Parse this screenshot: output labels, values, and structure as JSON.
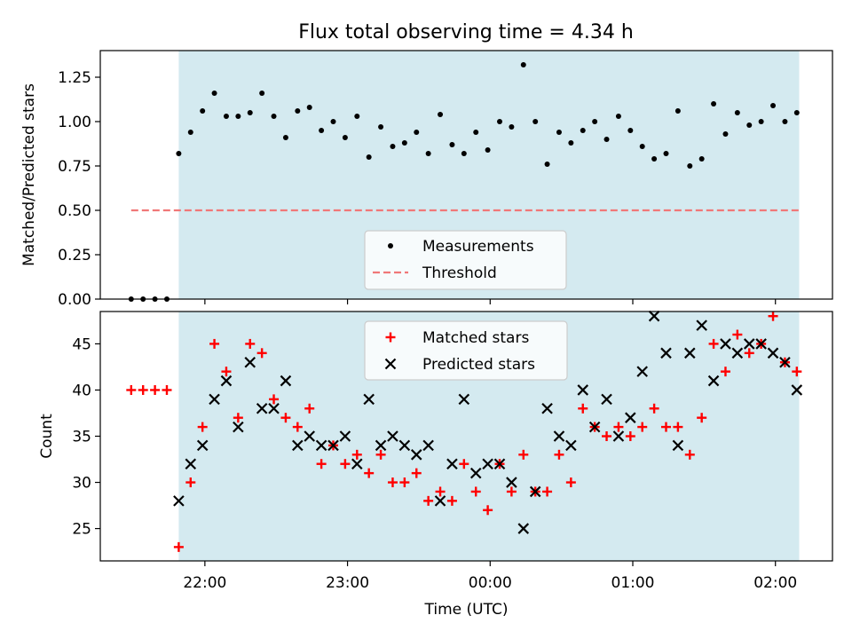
{
  "title": "Flux total observing time = 4.34 h",
  "colors": {
    "shade": "#d4eaf0",
    "threshold": "#f07878",
    "matched": "#ff0000",
    "predicted": "#000000",
    "measurement": "#000000"
  },
  "chart_data": [
    {
      "type": "scatter",
      "panel": "top",
      "ylabel": "Matched/Predicted stars",
      "ylim": [
        0,
        1.4
      ],
      "yticks": [
        "0.00",
        "0.25",
        "0.50",
        "0.75",
        "1.00",
        "1.25"
      ],
      "ytick_values": [
        0,
        0.25,
        0.5,
        0.75,
        1.0,
        1.25
      ],
      "xlim": [
        "21:16",
        "02:24"
      ],
      "shaded_span": [
        "21:49",
        "02:10"
      ],
      "legend": {
        "placement": "lower center",
        "entries": [
          "Measurements",
          "Threshold"
        ]
      },
      "threshold": {
        "name": "Threshold",
        "value": 0.5,
        "x_range": [
          "21:29",
          "02:10"
        ]
      },
      "series": [
        {
          "name": "Measurements",
          "marker": "dot",
          "x": [
            "21:29",
            "21:34",
            "21:39",
            "21:44",
            "21:49",
            "21:54",
            "21:59",
            "22:04",
            "22:09",
            "22:14",
            "22:19",
            "22:24",
            "22:29",
            "22:34",
            "22:39",
            "22:44",
            "22:49",
            "22:54",
            "22:59",
            "23:04",
            "23:09",
            "23:14",
            "23:19",
            "23:24",
            "23:29",
            "23:34",
            "23:39",
            "23:44",
            "23:49",
            "23:54",
            "23:59",
            "00:04",
            "00:09",
            "00:14",
            "00:19",
            "00:24",
            "00:29",
            "00:34",
            "00:39",
            "00:44",
            "00:49",
            "00:54",
            "00:59",
            "01:04",
            "01:09",
            "01:14",
            "01:19",
            "01:24",
            "01:29",
            "01:34",
            "01:39",
            "01:44",
            "01:49",
            "01:54",
            "01:59",
            "02:04",
            "02:09"
          ],
          "y": [
            0,
            0,
            0,
            0,
            0.82,
            0.94,
            1.06,
            1.16,
            1.03,
            1.03,
            1.05,
            1.16,
            1.03,
            0.91,
            1.06,
            1.08,
            0.95,
            1.0,
            0.91,
            1.03,
            0.8,
            0.97,
            0.86,
            0.88,
            0.94,
            0.82,
            1.04,
            0.87,
            0.82,
            0.94,
            0.84,
            1.0,
            0.97,
            1.32,
            1.0,
            0.76,
            0.94,
            0.88,
            0.95,
            1.0,
            0.9,
            1.03,
            0.95,
            0.86,
            0.79,
            0.82,
            1.06,
            0.75,
            0.79,
            1.1,
            0.93,
            1.05,
            0.98,
            1.0,
            1.09,
            1.0,
            1.05
          ]
        }
      ]
    },
    {
      "type": "scatter",
      "panel": "bottom",
      "ylabel": "Count",
      "xlabel": "Time (UTC)",
      "ylim": [
        21.5,
        48.5
      ],
      "yticks": [
        "25",
        "30",
        "35",
        "40",
        "45"
      ],
      "ytick_values": [
        25,
        30,
        35,
        40,
        45
      ],
      "xlim": [
        "21:16",
        "02:24"
      ],
      "xticks": [
        "22:00",
        "23:00",
        "00:00",
        "01:00",
        "02:00"
      ],
      "shaded_span": [
        "21:49",
        "02:10"
      ],
      "legend": {
        "placement": "upper center",
        "entries": [
          "Matched stars",
          "Predicted stars"
        ]
      },
      "series": [
        {
          "name": "Matched stars",
          "marker": "plus",
          "x": [
            "21:29",
            "21:34",
            "21:39",
            "21:44",
            "21:49",
            "21:54",
            "21:59",
            "22:04",
            "22:09",
            "22:14",
            "22:19",
            "22:24",
            "22:29",
            "22:34",
            "22:39",
            "22:44",
            "22:49",
            "22:54",
            "22:59",
            "23:04",
            "23:09",
            "23:14",
            "23:19",
            "23:24",
            "23:29",
            "23:34",
            "23:39",
            "23:44",
            "23:49",
            "23:54",
            "23:59",
            "00:04",
            "00:09",
            "00:14",
            "00:19",
            "00:24",
            "00:29",
            "00:34",
            "00:39",
            "00:44",
            "00:49",
            "00:54",
            "00:59",
            "01:04",
            "01:09",
            "01:14",
            "01:19",
            "01:24",
            "01:29",
            "01:34",
            "01:39",
            "01:44",
            "01:49",
            "01:54",
            "01:59",
            "02:04",
            "02:09"
          ],
          "y": [
            40,
            40,
            40,
            40,
            23,
            30,
            36,
            45,
            42,
            37,
            45,
            44,
            39,
            37,
            36,
            38,
            32,
            34,
            32,
            33,
            31,
            33,
            30,
            30,
            31,
            28,
            29,
            28,
            32,
            29,
            27,
            32,
            29,
            33,
            29,
            29,
            33,
            30,
            38,
            36,
            35,
            36,
            35,
            36,
            38,
            36,
            36,
            33,
            37,
            45,
            42,
            46,
            44,
            45,
            48,
            43,
            42
          ]
        },
        {
          "name": "Predicted stars",
          "marker": "x",
          "x": [
            "21:49",
            "21:54",
            "21:59",
            "22:04",
            "22:09",
            "22:14",
            "22:19",
            "22:24",
            "22:29",
            "22:34",
            "22:39",
            "22:44",
            "22:49",
            "22:54",
            "22:59",
            "23:04",
            "23:09",
            "23:14",
            "23:19",
            "23:24",
            "23:29",
            "23:34",
            "23:39",
            "23:44",
            "23:49",
            "23:54",
            "23:59",
            "00:04",
            "00:09",
            "00:14",
            "00:19",
            "00:24",
            "00:29",
            "00:34",
            "00:39",
            "00:44",
            "00:49",
            "00:54",
            "00:59",
            "01:04",
            "01:09",
            "01:14",
            "01:19",
            "01:24",
            "01:29",
            "01:34",
            "01:39",
            "01:44",
            "01:49",
            "01:54",
            "01:59",
            "02:04",
            "02:09"
          ],
          "y": [
            28,
            32,
            34,
            39,
            41,
            36,
            43,
            38,
            38,
            41,
            34,
            35,
            34,
            34,
            35,
            32,
            39,
            34,
            35,
            34,
            33,
            34,
            28,
            32,
            39,
            31,
            32,
            32,
            30,
            25,
            29,
            38,
            35,
            34,
            40,
            36,
            39,
            35,
            37,
            42,
            48,
            44,
            34,
            44,
            47,
            41,
            45,
            44,
            45,
            45,
            44,
            43,
            40
          ]
        }
      ]
    }
  ]
}
